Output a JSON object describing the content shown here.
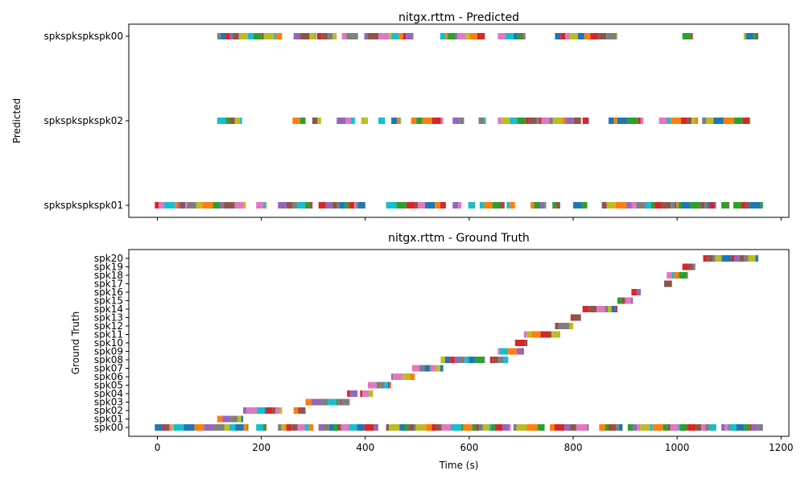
{
  "chart_data": [
    {
      "type": "timeline",
      "title": "nitgx.rttm - Predicted",
      "ylabel": "Predicted",
      "xlim": [
        -55,
        1215
      ],
      "x_ticks_shown": false,
      "categories": [
        "spkspkspkspk00",
        "spkspkspkspk02",
        "spkspkspkspk01"
      ],
      "segments": [
        {
          "row": "spkspkspkspk00",
          "start": 115,
          "end": 240
        },
        {
          "row": "spkspkspkspk00",
          "start": 262,
          "end": 305
        },
        {
          "row": "spkspkspkspk00",
          "start": 307,
          "end": 345
        },
        {
          "row": "spkspkspkspk00",
          "start": 355,
          "end": 385
        },
        {
          "row": "spkspkspkspk00",
          "start": 398,
          "end": 492
        },
        {
          "row": "spkspkspkspk00",
          "start": 544,
          "end": 630
        },
        {
          "row": "spkspkspkspk00",
          "start": 655,
          "end": 708
        },
        {
          "row": "spkspkspkspk00",
          "start": 765,
          "end": 885
        },
        {
          "row": "spkspkspkspk00",
          "start": 1010,
          "end": 1030
        },
        {
          "row": "spkspkspkspk00",
          "start": 1128,
          "end": 1156
        },
        {
          "row": "spkspkspkspk02",
          "start": 115,
          "end": 163
        },
        {
          "row": "spkspkspkspk02",
          "start": 260,
          "end": 285
        },
        {
          "row": "spkspkspkspk02",
          "start": 298,
          "end": 315
        },
        {
          "row": "spkspkspkspk02",
          "start": 345,
          "end": 380
        },
        {
          "row": "spkspkspkspk02",
          "start": 392,
          "end": 405
        },
        {
          "row": "spkspkspkspk02",
          "start": 425,
          "end": 438
        },
        {
          "row": "spkspkspkspk02",
          "start": 450,
          "end": 468
        },
        {
          "row": "spkspkspkspk02",
          "start": 488,
          "end": 510
        },
        {
          "row": "spkspkspkspk02",
          "start": 510,
          "end": 550
        },
        {
          "row": "spkspkspkspk02",
          "start": 568,
          "end": 590
        },
        {
          "row": "spkspkspkspk02",
          "start": 618,
          "end": 632
        },
        {
          "row": "spkspkspkspk02",
          "start": 655,
          "end": 735
        },
        {
          "row": "spkspkspkspk02",
          "start": 735,
          "end": 815
        },
        {
          "row": "spkspkspkspk02",
          "start": 818,
          "end": 830
        },
        {
          "row": "spkspkspkspk02",
          "start": 868,
          "end": 885
        },
        {
          "row": "spkspkspkspk02",
          "start": 885,
          "end": 935
        },
        {
          "row": "spkspkspkspk02",
          "start": 965,
          "end": 1040
        },
        {
          "row": "spkspkspkspk02",
          "start": 1048,
          "end": 1140
        },
        {
          "row": "spkspkspkspk01",
          "start": -5,
          "end": 170
        },
        {
          "row": "spkspkspkspk01",
          "start": 190,
          "end": 210
        },
        {
          "row": "spkspkspkspk01",
          "start": 232,
          "end": 298
        },
        {
          "row": "spkspkspkspk01",
          "start": 310,
          "end": 400
        },
        {
          "row": "spkspkspkspk01",
          "start": 440,
          "end": 520
        },
        {
          "row": "spkspkspkspk01",
          "start": 515,
          "end": 555
        },
        {
          "row": "spkspkspkspk01",
          "start": 568,
          "end": 585
        },
        {
          "row": "spkspkspkspk01",
          "start": 598,
          "end": 610
        },
        {
          "row": "spkspkspkspk01",
          "start": 620,
          "end": 668
        },
        {
          "row": "spkspkspkspk01",
          "start": 672,
          "end": 688
        },
        {
          "row": "spkspkspkspk01",
          "start": 718,
          "end": 748
        },
        {
          "row": "spkspkspkspk01",
          "start": 760,
          "end": 775
        },
        {
          "row": "spkspkspkspk01",
          "start": 800,
          "end": 827
        },
        {
          "row": "spkspkspkspk01",
          "start": 855,
          "end": 915
        },
        {
          "row": "spkspkspkspk01",
          "start": 912,
          "end": 975
        },
        {
          "row": "spkspkspkspk01",
          "start": 975,
          "end": 1010
        },
        {
          "row": "spkspkspkspk01",
          "start": 1008,
          "end": 1045
        },
        {
          "row": "spkspkspkspk01",
          "start": 1045,
          "end": 1075
        },
        {
          "row": "spkspkspkspk01",
          "start": 1085,
          "end": 1100
        },
        {
          "row": "spkspkspkspk01",
          "start": 1108,
          "end": 1140
        },
        {
          "row": "spkspkspkspk01",
          "start": 1140,
          "end": 1165
        }
      ]
    },
    {
      "type": "timeline",
      "title": "nitgx.rttm - Ground Truth",
      "xlabel": "Time (s)",
      "ylabel": "Ground Truth",
      "xlim": [
        -55,
        1215
      ],
      "xticks": [
        0,
        200,
        400,
        600,
        800,
        1000,
        1200
      ],
      "categories": [
        "spk00",
        "spk01",
        "spk02",
        "spk03",
        "spk04",
        "spk05",
        "spk06",
        "spk07",
        "spk08",
        "spk09",
        "spk10",
        "spk11",
        "spk12",
        "spk13",
        "spk14",
        "spk15",
        "spk16",
        "spk17",
        "spk18",
        "spk19",
        "spk20"
      ],
      "segments": [
        {
          "row": "spk00",
          "start": -5,
          "end": 175
        },
        {
          "row": "spk00",
          "start": 190,
          "end": 210
        },
        {
          "row": "spk00",
          "start": 232,
          "end": 300
        },
        {
          "row": "spk00",
          "start": 310,
          "end": 425
        },
        {
          "row": "spk00",
          "start": 440,
          "end": 590
        },
        {
          "row": "spk00",
          "start": 588,
          "end": 680
        },
        {
          "row": "spk00",
          "start": 685,
          "end": 745
        },
        {
          "row": "spk00",
          "start": 755,
          "end": 830
        },
        {
          "row": "spk00",
          "start": 850,
          "end": 895
        },
        {
          "row": "spk00",
          "start": 905,
          "end": 1075
        },
        {
          "row": "spk00",
          "start": 1085,
          "end": 1165
        },
        {
          "row": "spk01",
          "start": 115,
          "end": 165
        },
        {
          "row": "spk02",
          "start": 165,
          "end": 240
        },
        {
          "row": "spk02",
          "start": 262,
          "end": 285
        },
        {
          "row": "spk03",
          "start": 285,
          "end": 370
        },
        {
          "row": "spk04",
          "start": 365,
          "end": 385
        },
        {
          "row": "spk04",
          "start": 390,
          "end": 415
        },
        {
          "row": "spk05",
          "start": 405,
          "end": 450
        },
        {
          "row": "spk06",
          "start": 450,
          "end": 495
        },
        {
          "row": "spk07",
          "start": 490,
          "end": 525
        },
        {
          "row": "spk07",
          "start": 525,
          "end": 550
        },
        {
          "row": "spk08",
          "start": 545,
          "end": 630
        },
        {
          "row": "spk08",
          "start": 640,
          "end": 675
        },
        {
          "row": "spk09",
          "start": 655,
          "end": 705
        },
        {
          "row": "spk10",
          "start": 688,
          "end": 712
        },
        {
          "row": "spk11",
          "start": 705,
          "end": 775
        },
        {
          "row": "spk12",
          "start": 765,
          "end": 800
        },
        {
          "row": "spk13",
          "start": 795,
          "end": 815
        },
        {
          "row": "spk14",
          "start": 818,
          "end": 885
        },
        {
          "row": "spk15",
          "start": 885,
          "end": 915
        },
        {
          "row": "spk16",
          "start": 912,
          "end": 930
        },
        {
          "row": "spk17",
          "start": 975,
          "end": 990
        },
        {
          "row": "spk18",
          "start": 980,
          "end": 1020
        },
        {
          "row": "spk19",
          "start": 1010,
          "end": 1035
        },
        {
          "row": "spk20",
          "start": 1050,
          "end": 1140
        },
        {
          "row": "spk20",
          "start": 1128,
          "end": 1156
        }
      ]
    }
  ],
  "palette": [
    "#1f77b4",
    "#ff7f0e",
    "#2ca02c",
    "#d62728",
    "#9467bd",
    "#8c564b",
    "#e377c2",
    "#7f7f7f",
    "#bcbd22",
    "#17becf"
  ]
}
